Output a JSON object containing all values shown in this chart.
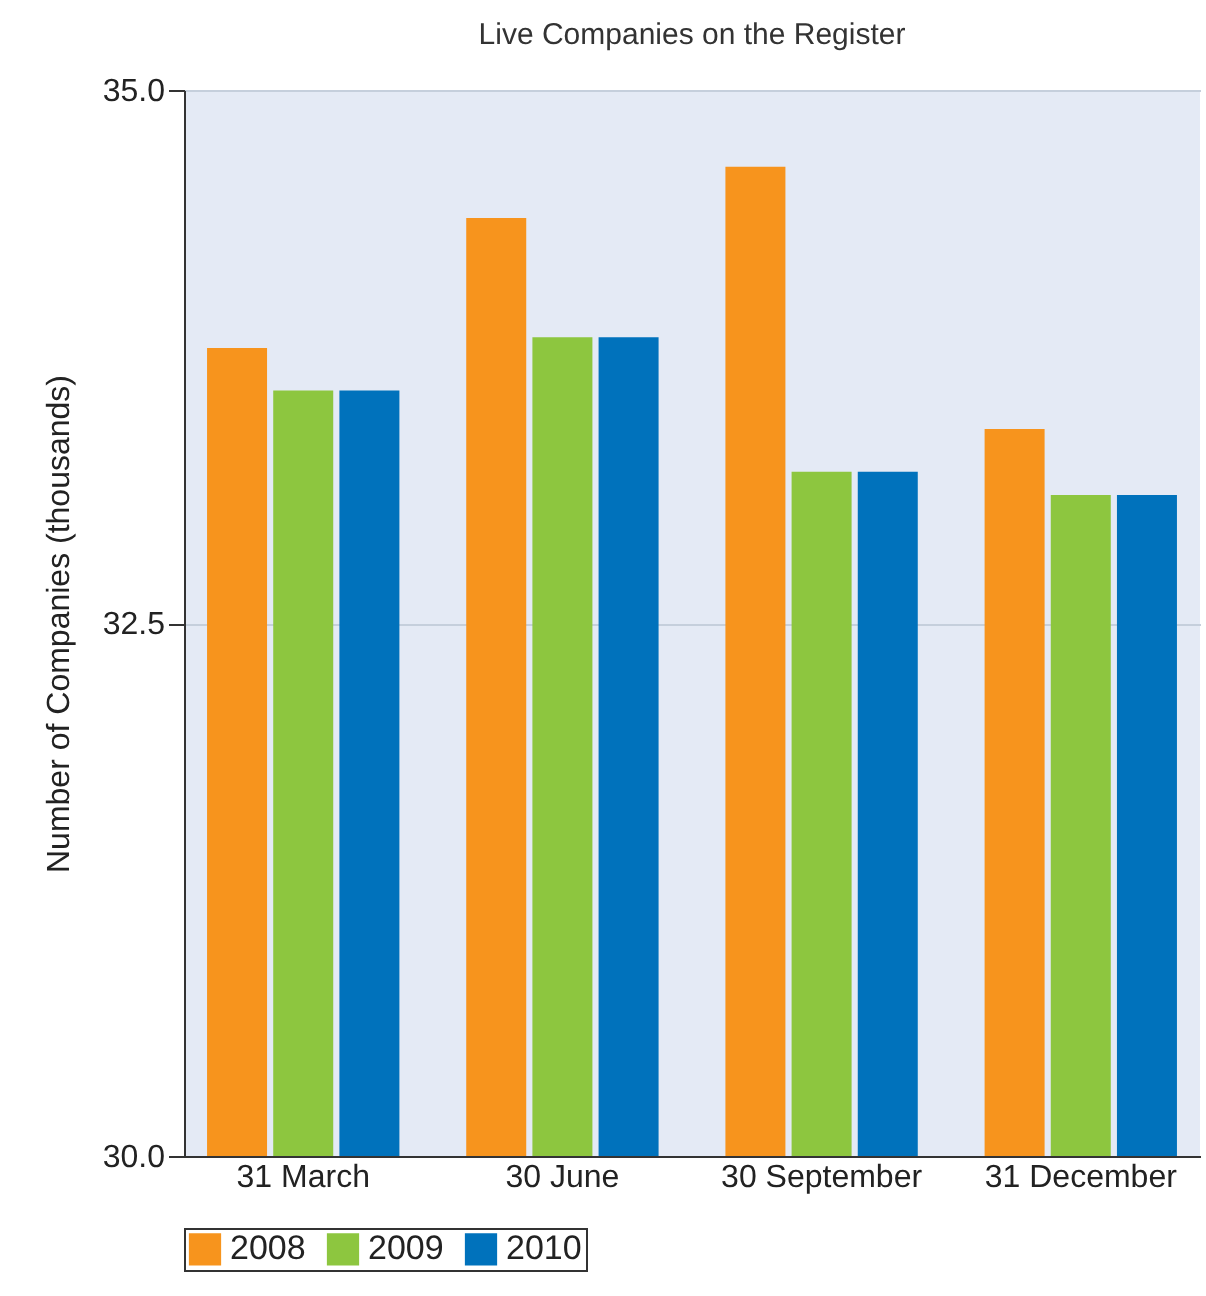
{
  "chart_data": {
    "type": "bar",
    "title": "Live Companies on the Register",
    "ylabel": "Number of Companies (thousands)",
    "categories": [
      "31 March",
      "30 June",
      "30 September",
      "31 December"
    ],
    "series": [
      {
        "name": "2008",
        "color": "#f7941d",
        "values": [
          33.79,
          34.4,
          34.64,
          33.41
        ]
      },
      {
        "name": "2009",
        "color": "#8dc63f",
        "values": [
          33.59,
          33.84,
          33.21,
          33.1
        ]
      },
      {
        "name": "2010",
        "color": "#0072bc",
        "values": [
          33.59,
          33.84,
          33.21,
          33.1
        ]
      }
    ],
    "ylim": [
      30,
      35
    ],
    "yticks": [
      {
        "value": 30,
        "label": "30.0"
      },
      {
        "value": 32.5,
        "label": "32.5"
      },
      {
        "value": 35,
        "label": "35.0"
      }
    ],
    "grid": "y",
    "legend": "bottom"
  }
}
